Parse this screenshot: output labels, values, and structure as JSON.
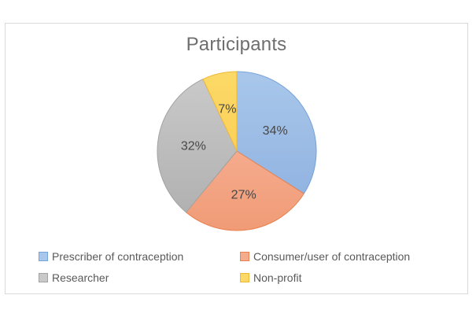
{
  "chart": {
    "frame_border_color": "#d9d9d9",
    "background_color": "#ffffff",
    "title_color": "#6e6e6e",
    "data_label_color": "#474747",
    "legend_text_color": "#595959"
  },
  "chart_data": {
    "type": "pie",
    "title": "Participants",
    "categories": [
      "Prescriber of contraception",
      "Consumer/user of contraception",
      "Researcher",
      "Non-profit"
    ],
    "values": [
      34,
      27,
      32,
      7
    ],
    "labels": [
      "34%",
      "27%",
      "32%",
      "7%"
    ],
    "start_angle_deg": 0,
    "direction": "clockwise",
    "legend_position": "bottom",
    "legend_columns": 2,
    "colors": [
      {
        "name": "blue",
        "fill_top": "#a9c7eb",
        "fill_bottom": "#92b4e1",
        "border": "#76a3d9"
      },
      {
        "name": "orange",
        "fill_top": "#f5ab8d",
        "fill_bottom": "#f09b76",
        "border": "#e8814e"
      },
      {
        "name": "gray",
        "fill_top": "#c9c9c9",
        "fill_bottom": "#b1b1b1",
        "border": "#a3a3a3"
      },
      {
        "name": "yellow",
        "fill_top": "#fcd967",
        "fill_bottom": "#fbd058",
        "border": "#edb83a"
      }
    ]
  }
}
